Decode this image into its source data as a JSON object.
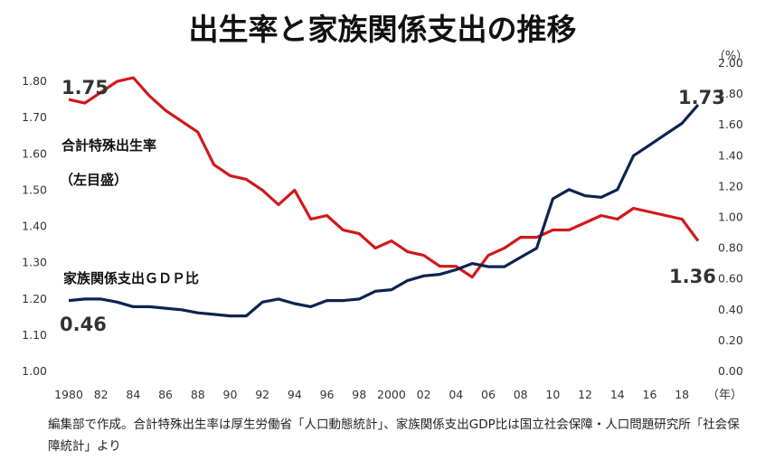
{
  "chart_data": {
    "type": "line",
    "title": "出生率と家族関係支出の推移",
    "years": [
      1980,
      1981,
      1982,
      1983,
      1984,
      1985,
      1986,
      1987,
      1988,
      1989,
      1990,
      1991,
      1992,
      1993,
      1994,
      1995,
      1996,
      1997,
      1998,
      1999,
      2000,
      2001,
      2002,
      2003,
      2004,
      2005,
      2006,
      2007,
      2008,
      2009,
      2010,
      2011,
      2012,
      2013,
      2014,
      2015,
      2016,
      2017,
      2018,
      2019
    ],
    "x_tick_labels": [
      "1980",
      "82",
      "84",
      "86",
      "88",
      "90",
      "92",
      "94",
      "96",
      "98",
      "2000",
      "02",
      "04",
      "06",
      "08",
      "10",
      "12",
      "14",
      "16",
      "18"
    ],
    "x_unit": "（年）",
    "left_axis": {
      "ylim": [
        1.0,
        1.85
      ],
      "ticks": [
        "1.00",
        "1.10",
        "1.20",
        "1.30",
        "1.40",
        "1.50",
        "1.60",
        "1.70",
        "1.80"
      ]
    },
    "right_axis": {
      "ylim": [
        0.0,
        2.0
      ],
      "unit": "（%）",
      "ticks": [
        "0.00",
        "0.20",
        "0.40",
        "0.60",
        "0.80",
        "1.00",
        "1.20",
        "1.40",
        "1.60",
        "1.80",
        "2.00"
      ]
    },
    "series": [
      {
        "name": "合計特殊出生率",
        "name_note": "（左目盛）",
        "axis": "left",
        "color": "#d0191b",
        "values": [
          1.75,
          1.74,
          1.77,
          1.8,
          1.81,
          1.76,
          1.72,
          1.69,
          1.66,
          1.57,
          1.54,
          1.53,
          1.5,
          1.46,
          1.5,
          1.42,
          1.43,
          1.39,
          1.38,
          1.34,
          1.36,
          1.33,
          1.32,
          1.29,
          1.29,
          1.26,
          1.32,
          1.34,
          1.37,
          1.37,
          1.39,
          1.39,
          1.41,
          1.43,
          1.42,
          1.45,
          1.44,
          1.43,
          1.42,
          1.36
        ],
        "start_label": "1.75",
        "end_label": "1.36"
      },
      {
        "name": "家族関係支出ＧＤＰ比",
        "axis": "right",
        "color": "#0d2350",
        "values": [
          0.46,
          0.47,
          0.47,
          0.45,
          0.42,
          0.42,
          0.41,
          0.4,
          0.38,
          0.37,
          0.36,
          0.36,
          0.45,
          0.47,
          0.44,
          0.42,
          0.46,
          0.46,
          0.47,
          0.52,
          0.53,
          0.59,
          0.62,
          0.63,
          0.66,
          0.7,
          0.68,
          0.68,
          0.74,
          0.8,
          1.12,
          1.18,
          1.14,
          1.13,
          1.18,
          1.4,
          1.47,
          1.54,
          1.61,
          1.73
        ],
        "start_label": "0.46",
        "end_label": "1.73"
      }
    ],
    "grid": false
  },
  "source": "編集部で作成。合計特殊出生率は厚生労働省「人口動態統計」、家族関係支出GDP比は国立社会保障・人口問題研究所「社会保障統計」より"
}
